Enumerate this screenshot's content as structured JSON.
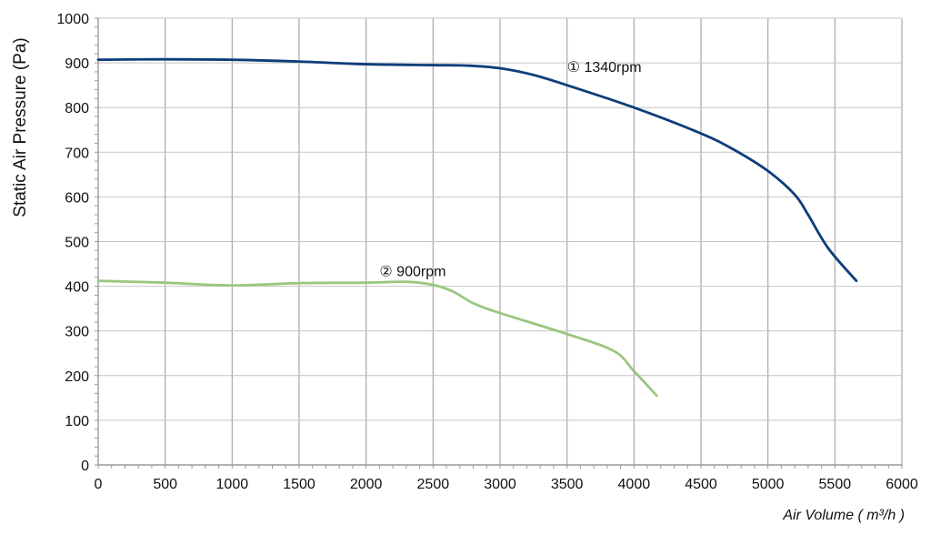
{
  "chart_data": {
    "type": "line",
    "xlabel": "Air Volume ( m³/h )",
    "ylabel": "Static Air Pressure  (Pa)",
    "xlim": [
      0,
      6000
    ],
    "ylim": [
      0,
      1000
    ],
    "x_ticks": [
      "0",
      "500",
      "1000",
      "1500",
      "2000",
      "2500",
      "3000",
      "3500",
      "4000",
      "4500",
      "5000",
      "5500",
      "6000"
    ],
    "y_ticks": [
      "0",
      "100",
      "200",
      "300",
      "400",
      "500",
      "600",
      "700",
      "800",
      "900",
      "1000"
    ],
    "grid": true,
    "series": [
      {
        "name": "① 1340rpm",
        "color": "#0d3d7a",
        "points": [
          [
            0,
            907
          ],
          [
            500,
            908
          ],
          [
            1000,
            907
          ],
          [
            1500,
            903
          ],
          [
            2000,
            897
          ],
          [
            2500,
            895
          ],
          [
            2750,
            894
          ],
          [
            3000,
            888
          ],
          [
            3250,
            873
          ],
          [
            3500,
            850
          ],
          [
            4000,
            800
          ],
          [
            4500,
            742
          ],
          [
            4750,
            705
          ],
          [
            5000,
            658
          ],
          [
            5200,
            605
          ],
          [
            5300,
            560
          ],
          [
            5450,
            485
          ],
          [
            5660,
            412
          ]
        ]
      },
      {
        "name": "② 900rpm",
        "color": "#9ac77f",
        "points": [
          [
            0,
            412
          ],
          [
            500,
            408
          ],
          [
            1000,
            402
          ],
          [
            1500,
            407
          ],
          [
            2000,
            408
          ],
          [
            2300,
            410
          ],
          [
            2500,
            403
          ],
          [
            2650,
            388
          ],
          [
            2800,
            362
          ],
          [
            3000,
            340
          ],
          [
            3500,
            293
          ],
          [
            3850,
            255
          ],
          [
            4000,
            210
          ],
          [
            4170,
            155
          ]
        ]
      }
    ],
    "annotations": [
      {
        "text": "① 1340rpm",
        "x": 3500,
        "y": 890
      },
      {
        "text": "② 900rpm",
        "x": 2100,
        "y": 433
      }
    ]
  }
}
